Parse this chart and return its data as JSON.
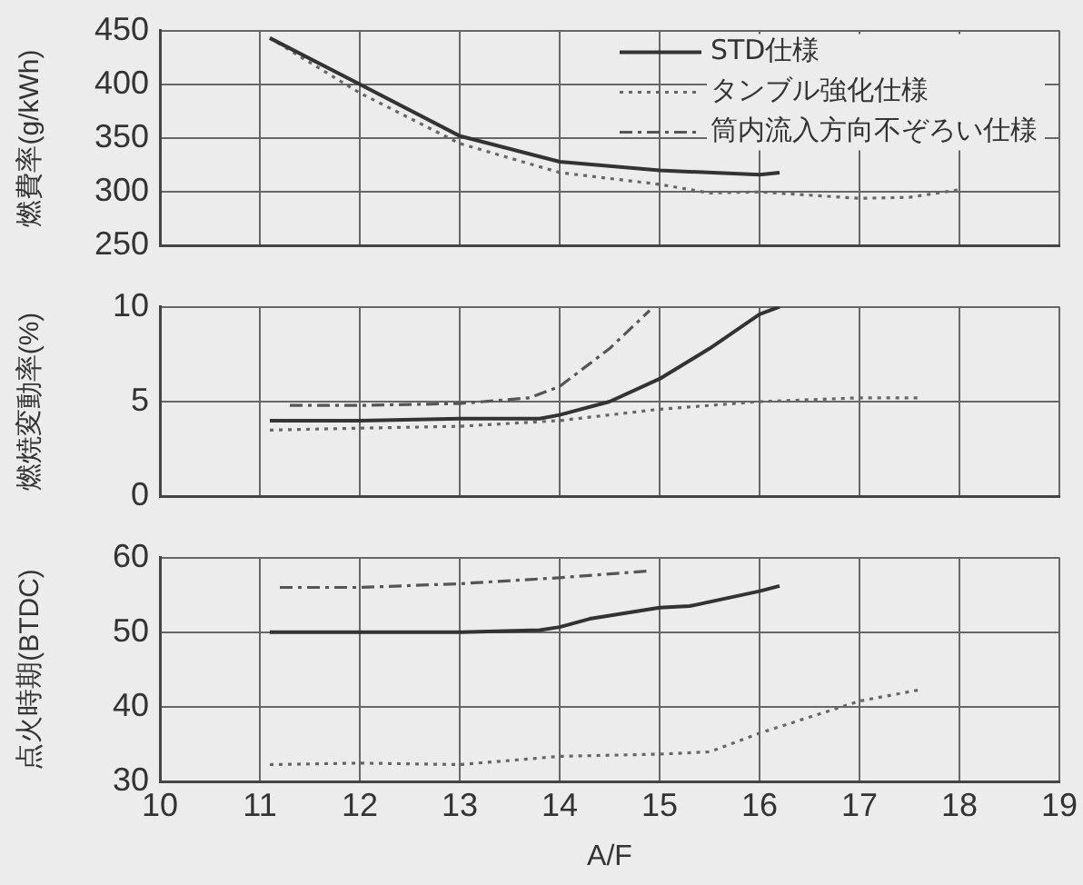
{
  "chart_data": [
    {
      "type": "line",
      "ylabel": "燃費率(g/kWh)",
      "xlim": [
        10,
        19
      ],
      "xticks": [
        10,
        11,
        12,
        13,
        14,
        15,
        16,
        17,
        18,
        19
      ],
      "ylim": [
        250,
        450
      ],
      "yticks": [
        250,
        300,
        350,
        400,
        450
      ],
      "grid": true,
      "legend": "top right",
      "tick_labels": "y",
      "marker": "none",
      "series": [
        {
          "name": "STD仕様",
          "color": "#333333",
          "line_style": "solid",
          "x": [
            11.1,
            12,
            13,
            14,
            15,
            16,
            16.2
          ],
          "values": [
            443,
            400,
            352,
            328,
            320,
            316,
            318
          ]
        },
        {
          "name": "タンブル強化仕様",
          "color": "#666666",
          "line_style": "dotted",
          "x": [
            11.1,
            12,
            13,
            14,
            15,
            15.5,
            16,
            16.5,
            17,
            17.5,
            18
          ],
          "values": [
            443,
            392,
            345,
            318,
            307,
            299,
            300,
            297,
            294,
            295,
            302
          ]
        },
        {
          "name": "筒内流入方向不ぞろい仕様",
          "color": "#555555",
          "line_style": "dashed"
        }
      ]
    },
    {
      "type": "line",
      "ylabel": "燃焼変動率(%)",
      "xlim": [
        10,
        19
      ],
      "xticks": [
        10,
        11,
        12,
        13,
        14,
        15,
        16,
        17,
        18,
        19
      ],
      "ylim": [
        0,
        10
      ],
      "yticks": [
        0,
        5,
        10
      ],
      "grid": true,
      "tick_labels": "y",
      "marker": "none",
      "series": [
        {
          "color": "#333333",
          "line_style": "solid",
          "x": [
            11.1,
            12,
            13,
            13.8,
            14,
            14.5,
            15,
            15.5,
            16,
            16.2
          ],
          "values": [
            4.0,
            4.0,
            4.1,
            4.1,
            4.3,
            5.0,
            6.2,
            7.8,
            9.6,
            10
          ]
        },
        {
          "color": "#666666",
          "line_style": "dotted",
          "x": [
            11.1,
            12,
            13,
            14,
            15,
            16,
            17,
            17.6
          ],
          "values": [
            3.5,
            3.6,
            3.7,
            4.0,
            4.6,
            5.0,
            5.2,
            5.2
          ]
        },
        {
          "color": "#555555",
          "line_style": "dashed",
          "x": [
            11.3,
            12,
            13,
            13.7,
            14,
            14.5,
            14.9
          ],
          "values": [
            4.8,
            4.8,
            4.9,
            5.2,
            5.8,
            7.8,
            9.8
          ]
        }
      ]
    },
    {
      "type": "line",
      "ylabel": "点火時期(BTDC)",
      "xlabel": "A/F",
      "xlim": [
        10,
        19
      ],
      "xticks": [
        10,
        11,
        12,
        13,
        14,
        15,
        16,
        17,
        18,
        19
      ],
      "ylim": [
        30,
        60
      ],
      "yticks": [
        30,
        40,
        50,
        60
      ],
      "grid": true,
      "marker": "none",
      "series": [
        {
          "color": "#333333",
          "line_style": "solid",
          "x": [
            11.1,
            13,
            13.8,
            14,
            14.3,
            15,
            15.3,
            16,
            16.2
          ],
          "values": [
            50,
            50,
            50.3,
            50.7,
            51.8,
            53.3,
            53.5,
            55.5,
            56.2
          ]
        },
        {
          "color": "#666666",
          "line_style": "dotted",
          "x": [
            11.1,
            12,
            13,
            14,
            15,
            15.5,
            16,
            17,
            17.6
          ],
          "values": [
            32.3,
            32.5,
            32.3,
            33.4,
            33.7,
            34,
            36.5,
            40.8,
            42.3
          ]
        },
        {
          "color": "#555555",
          "line_style": "dashed",
          "x": [
            11.2,
            12,
            13,
            14,
            14.9
          ],
          "values": [
            56,
            56,
            56.5,
            57.3,
            58.2
          ]
        }
      ]
    }
  ]
}
